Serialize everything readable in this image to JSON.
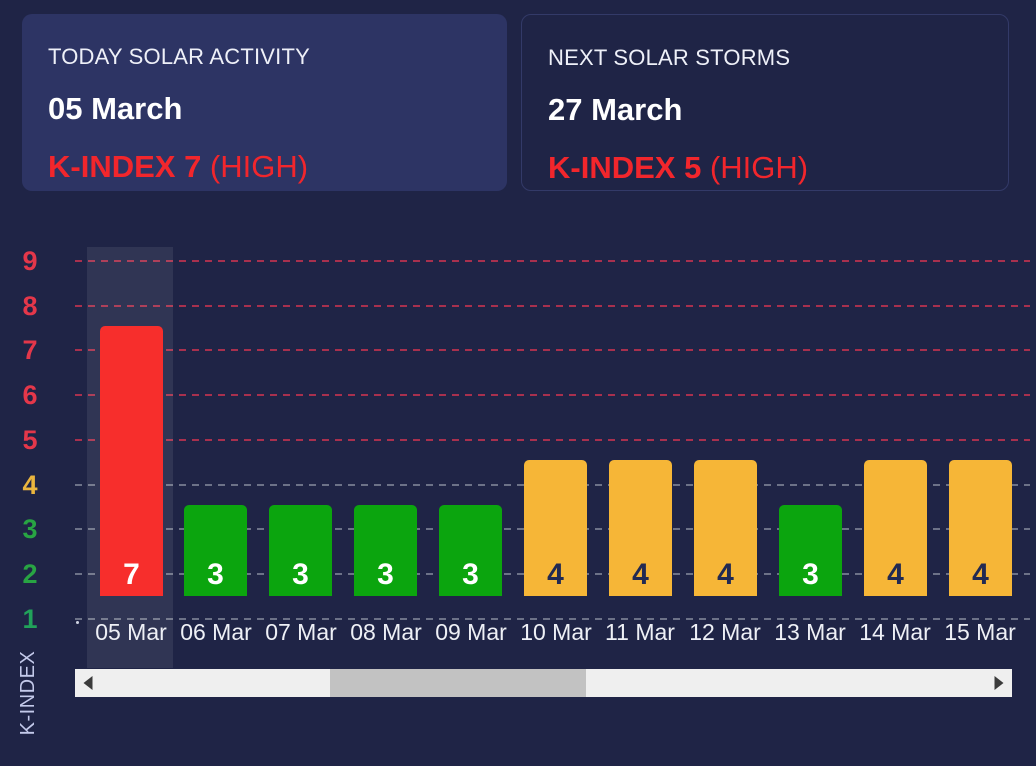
{
  "cards": {
    "today": {
      "label": "TODAY SOLAR ACTIVITY",
      "date": "05 March",
      "kindex": "K-INDEX 7",
      "kindex_level": " (HIGH)"
    },
    "next": {
      "label": "NEXT SOLAR STORMS",
      "date": "27 March",
      "kindex": "K-INDEX 5",
      "kindex_level": " (HIGH)"
    }
  },
  "chart_data": {
    "type": "bar",
    "title": "",
    "xlabel": "",
    "ylabel": "K-INDEX",
    "categories": [
      "05 Mar",
      "06 Mar",
      "07 Mar",
      "08 Mar",
      "09 Mar",
      "10 Mar",
      "11 Mar",
      "12 Mar",
      "13 Mar",
      "14 Mar",
      "15 Mar"
    ],
    "values": [
      7,
      3,
      3,
      3,
      3,
      4,
      4,
      4,
      3,
      4,
      4
    ],
    "ylim": [
      1,
      9
    ],
    "yticks": [
      9,
      8,
      7,
      6,
      5,
      4,
      3,
      2,
      1
    ],
    "grid": true,
    "legend": false,
    "highlighted_category": "05 Mar",
    "tick_colors": {
      "9": "#e4374a",
      "8": "#e4374a",
      "7": "#e4374a",
      "6": "#e4374a",
      "5": "#e4374a",
      "4": "#eab53e",
      "3": "#28a443",
      "2": "#28a443",
      "1": "#21a25a"
    },
    "severity_colors": {
      "low": "#0ba50e",
      "moderate": "#f6b637",
      "high": "#f72e2c"
    },
    "bar_label_colors": {
      "low": "#ffffff",
      "moderate": "#222a52",
      "high": "#ffffff"
    },
    "gridline_colors": {
      "high_zone": "rgba(214,52,80,0.75)",
      "low_zone": "rgba(216,222,226,0.42)"
    }
  },
  "colors": {
    "background": "#1f2446",
    "card_fill": "#2d3464",
    "card_border": "#333a68",
    "accent_red": "#f2262c",
    "text_primary": "#ffffff",
    "highlight_band": "rgba(255,255,255,0.08)",
    "axis_title": "#c3c9ea",
    "scrollbar_track": "#efefef",
    "scrollbar_thumb": "#c2c2c2"
  },
  "scrollbar": {
    "left_arrow": "left",
    "right_arrow": "right"
  }
}
